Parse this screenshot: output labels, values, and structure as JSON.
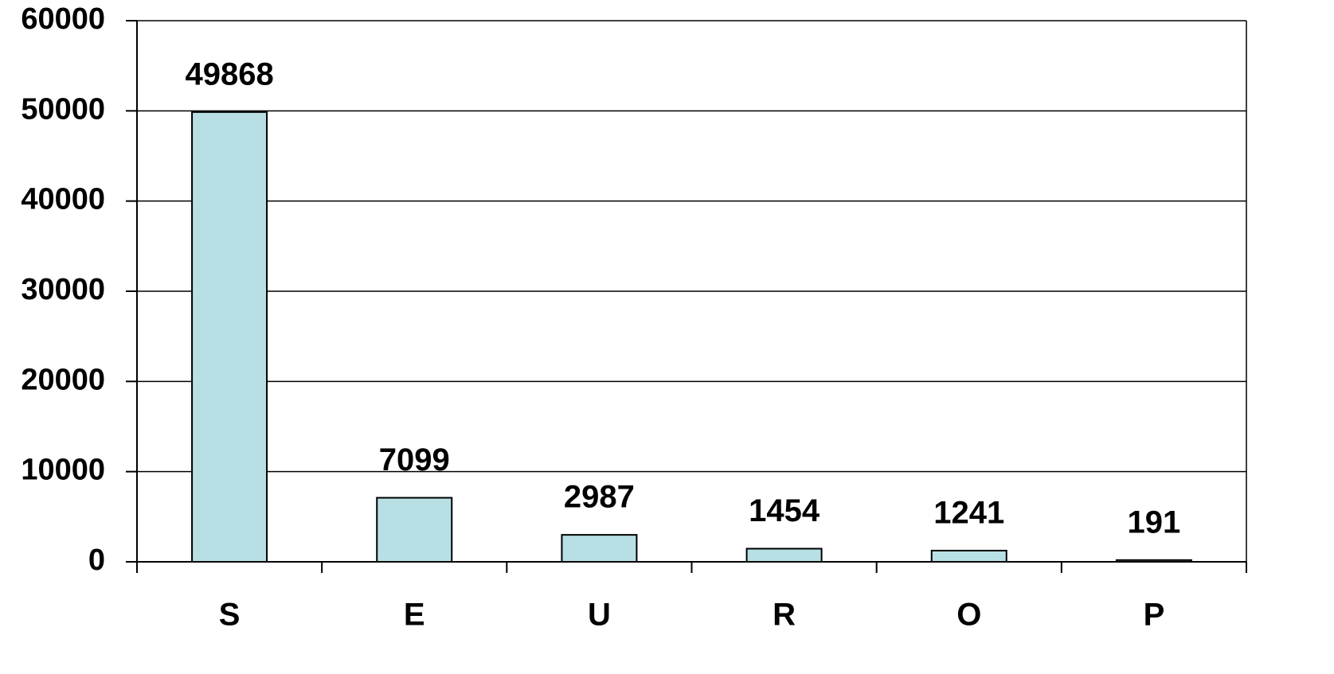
{
  "chart_data": {
    "type": "bar",
    "categories": [
      "S",
      "E",
      "U",
      "R",
      "O",
      "P"
    ],
    "values": [
      49868,
      7099,
      2987,
      1454,
      1241,
      191
    ],
    "color": "#b8e0e4",
    "ylim": [
      0,
      60000
    ],
    "yticks": [
      0,
      10000,
      20000,
      30000,
      40000,
      50000,
      60000
    ],
    "grid": true
  }
}
